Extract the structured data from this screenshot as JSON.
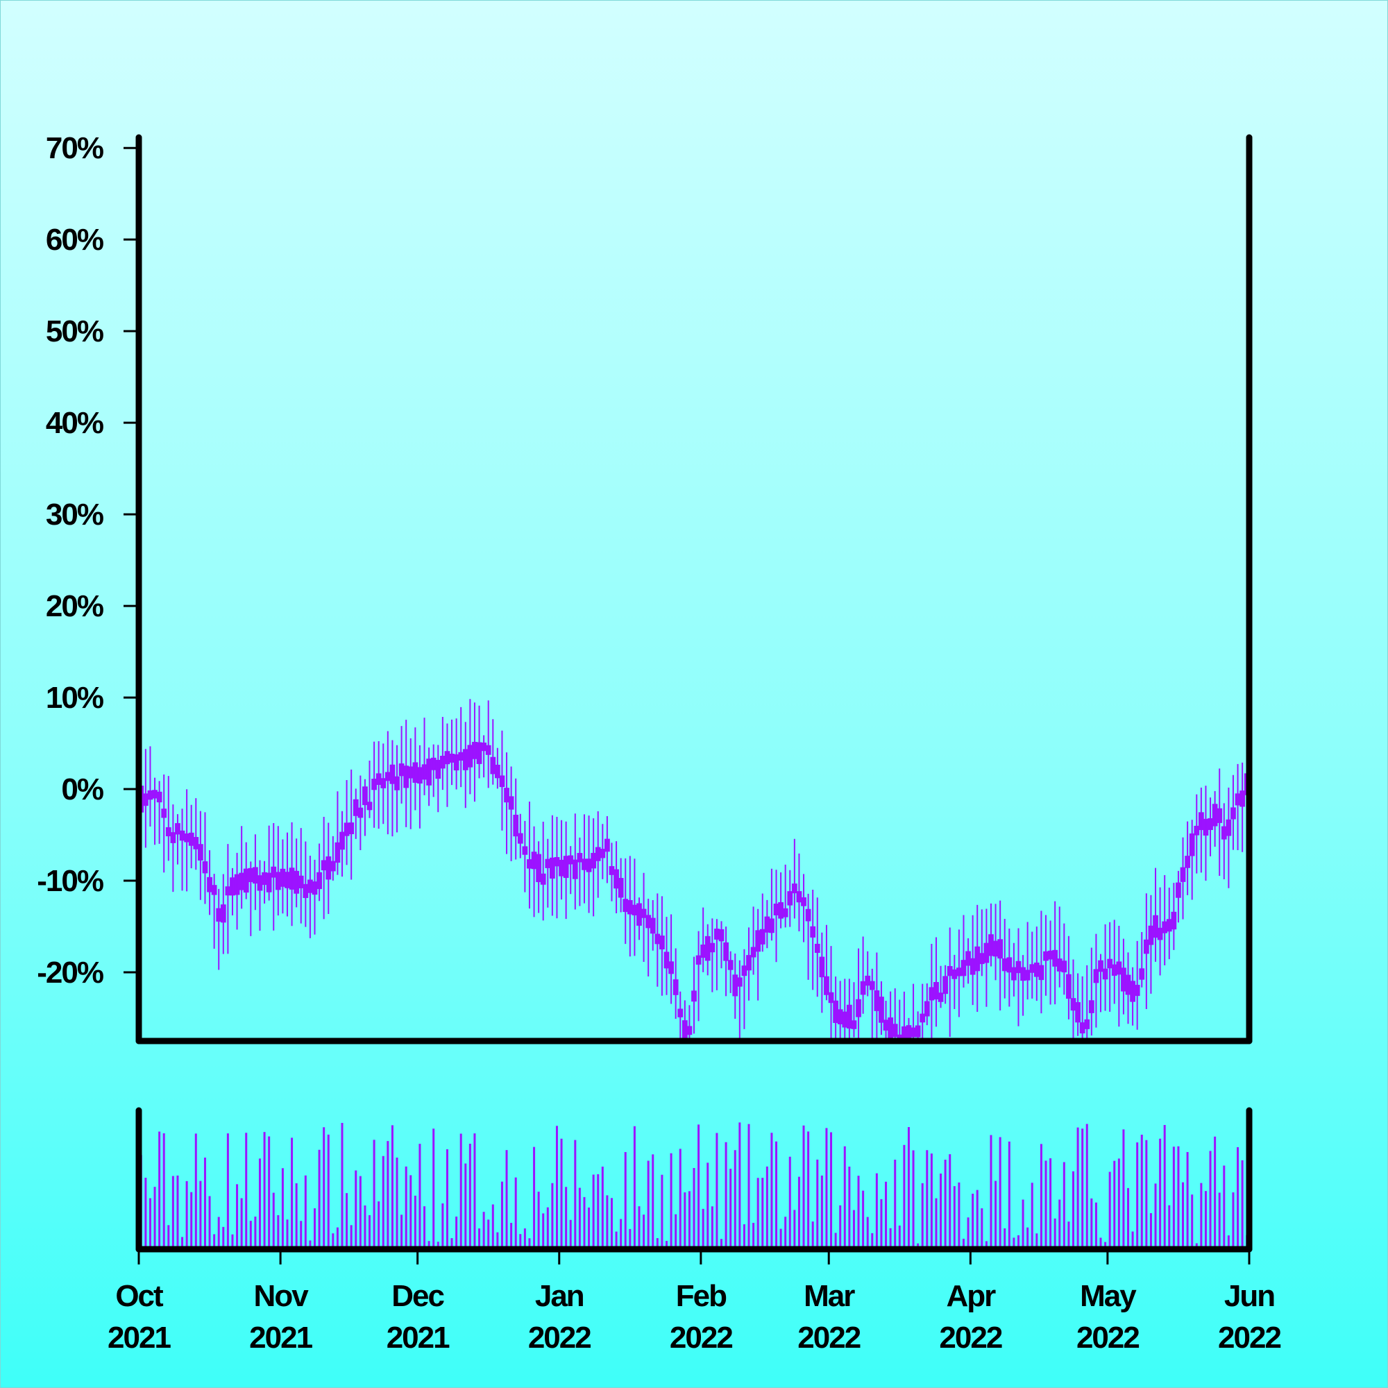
{
  "chart_data": {
    "type": "candlestick-with-volume",
    "title": "",
    "xlabel": "",
    "ylabel": "",
    "color": "#9c13ff",
    "axis_color": "#000000",
    "background_gradient": [
      "#d2ffff",
      "#3ffff9"
    ],
    "y_axis": {
      "range": [
        -27.5,
        71
      ],
      "ticks": [
        -20,
        -10,
        0,
        10,
        20,
        30,
        40,
        50,
        60,
        70
      ],
      "tick_labels": [
        "-20%",
        "-10%",
        "0%",
        "10%",
        "20%",
        "30%",
        "40%",
        "50%",
        "60%",
        "70%"
      ]
    },
    "x_axis": {
      "range": [
        "2021-10-01",
        "2022-06-01"
      ],
      "ticks": [
        {
          "date": "2021-10-01",
          "month": "Oct",
          "year": "2021"
        },
        {
          "date": "2021-11-01",
          "month": "Nov",
          "year": "2021"
        },
        {
          "date": "2021-12-01",
          "month": "Dec",
          "year": "2021"
        },
        {
          "date": "2022-01-01",
          "month": "Jan",
          "year": "2022"
        },
        {
          "date": "2022-02-01",
          "month": "Feb",
          "year": "2022"
        },
        {
          "date": "2022-03-01",
          "month": "Mar",
          "year": "2022"
        },
        {
          "date": "2022-04-01",
          "month": "Apr",
          "year": "2022"
        },
        {
          "date": "2022-05-01",
          "month": "May",
          "year": "2022"
        },
        {
          "date": "2022-06-01",
          "month": "Jun",
          "year": "2022"
        }
      ]
    },
    "price_path": [
      {
        "date": "2021-10-01",
        "value": -1
      },
      {
        "date": "2021-10-05",
        "value": -1
      },
      {
        "date": "2021-10-08",
        "value": -5
      },
      {
        "date": "2021-10-13",
        "value": -5
      },
      {
        "date": "2021-10-19",
        "value": -14
      },
      {
        "date": "2021-10-22",
        "value": -10
      },
      {
        "date": "2021-11-03",
        "value": -10
      },
      {
        "date": "2021-11-08",
        "value": -11
      },
      {
        "date": "2021-11-12",
        "value": -8
      },
      {
        "date": "2021-11-18",
        "value": -2
      },
      {
        "date": "2021-11-24",
        "value": 1
      },
      {
        "date": "2021-12-04",
        "value": 2
      },
      {
        "date": "2021-12-09",
        "value": 3
      },
      {
        "date": "2021-12-14",
        "value": 4
      },
      {
        "date": "2021-12-18",
        "value": 3
      },
      {
        "date": "2021-12-24",
        "value": -6
      },
      {
        "date": "2021-12-28",
        "value": -9
      },
      {
        "date": "2022-01-08",
        "value": -8
      },
      {
        "date": "2022-01-11",
        "value": -6
      },
      {
        "date": "2022-01-16",
        "value": -13
      },
      {
        "date": "2022-01-21",
        "value": -15
      },
      {
        "date": "2022-01-25",
        "value": -19
      },
      {
        "date": "2022-01-29",
        "value": -27.5
      },
      {
        "date": "2022-02-01",
        "value": -18
      },
      {
        "date": "2022-02-05",
        "value": -16
      },
      {
        "date": "2022-02-09",
        "value": -22
      },
      {
        "date": "2022-02-14",
        "value": -16
      },
      {
        "date": "2022-02-22",
        "value": -11
      },
      {
        "date": "2022-02-27",
        "value": -18
      },
      {
        "date": "2022-03-02",
        "value": -24
      },
      {
        "date": "2022-03-07",
        "value": -25
      },
      {
        "date": "2022-03-09",
        "value": -20
      },
      {
        "date": "2022-03-15",
        "value": -27
      },
      {
        "date": "2022-03-20",
        "value": -27
      },
      {
        "date": "2022-03-23",
        "value": -23
      },
      {
        "date": "2022-03-27",
        "value": -21
      },
      {
        "date": "2022-04-06",
        "value": -17
      },
      {
        "date": "2022-04-13",
        "value": -21
      },
      {
        "date": "2022-04-20",
        "value": -18
      },
      {
        "date": "2022-04-26",
        "value": -26
      },
      {
        "date": "2022-04-29",
        "value": -20
      },
      {
        "date": "2022-05-03",
        "value": -20
      },
      {
        "date": "2022-05-07",
        "value": -22
      },
      {
        "date": "2022-05-11",
        "value": -15
      },
      {
        "date": "2022-05-15",
        "value": -15
      },
      {
        "date": "2022-05-18",
        "value": -8
      },
      {
        "date": "2022-05-21",
        "value": -4
      },
      {
        "date": "2022-05-25",
        "value": -3
      },
      {
        "date": "2022-05-27",
        "value": -5
      },
      {
        "date": "2022-06-01",
        "value": 1
      }
    ]
  }
}
